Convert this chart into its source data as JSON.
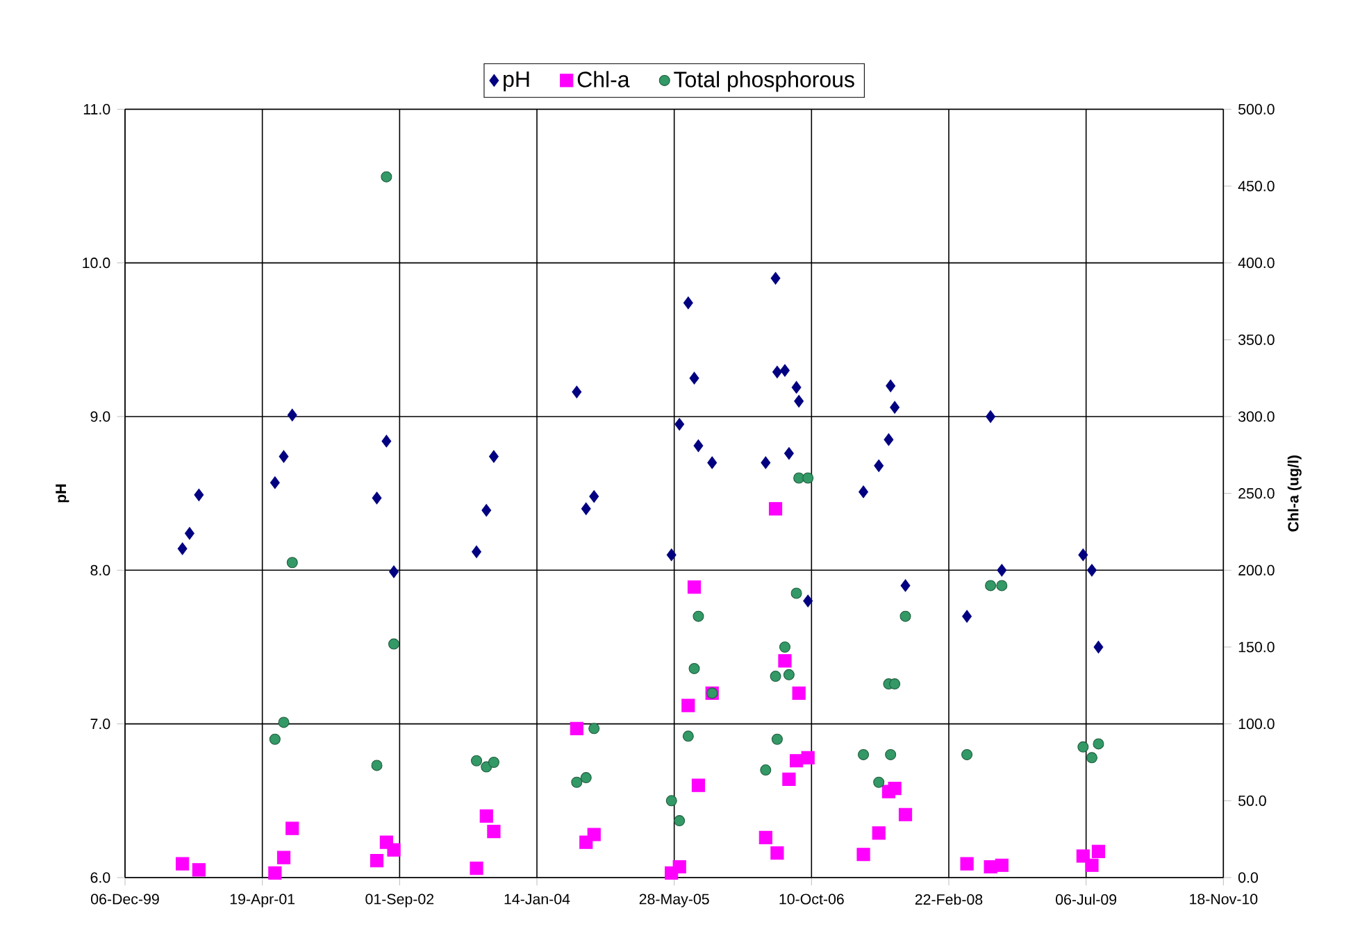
{
  "chart_data": {
    "type": "scatter",
    "ylabel": "pH",
    "y2label": "Chl-a (ug/l)",
    "xlim": [
      "1999-12-06",
      "2010-11-18"
    ],
    "xticks": [
      {
        "value": "1999-12-06",
        "label": "06-Dec-99"
      },
      {
        "value": "2001-04-19",
        "label": "19-Apr-01"
      },
      {
        "value": "2002-09-01",
        "label": "01-Sep-02"
      },
      {
        "value": "2004-01-14",
        "label": "14-Jan-04"
      },
      {
        "value": "2005-05-28",
        "label": "28-May-05"
      },
      {
        "value": "2006-10-10",
        "label": "10-Oct-06"
      },
      {
        "value": "2008-02-22",
        "label": "22-Feb-08"
      },
      {
        "value": "2009-07-06",
        "label": "06-Jul-09"
      },
      {
        "value": "2010-11-18",
        "label": "18-Nov-10"
      }
    ],
    "ylim": [
      6,
      11
    ],
    "yticks": [
      {
        "value": 6,
        "label": "6.0"
      },
      {
        "value": 7,
        "label": "7.0"
      },
      {
        "value": 8,
        "label": "8.0"
      },
      {
        "value": 9,
        "label": "9.0"
      },
      {
        "value": 10,
        "label": "10.0"
      },
      {
        "value": 11,
        "label": "11.0"
      }
    ],
    "y2lim": [
      0,
      500
    ],
    "y2ticks": [
      {
        "value": 0,
        "label": "0.0"
      },
      {
        "value": 50,
        "label": "50.0"
      },
      {
        "value": 100,
        "label": "100.0"
      },
      {
        "value": 150,
        "label": "150.0"
      },
      {
        "value": 200,
        "label": "200.0"
      },
      {
        "value": 250,
        "label": "250.0"
      },
      {
        "value": 300,
        "label": "300.0"
      },
      {
        "value": 350,
        "label": "350.0"
      },
      {
        "value": 400,
        "label": "400.0"
      },
      {
        "value": 450,
        "label": "450.0"
      },
      {
        "value": 500,
        "label": "500.0"
      }
    ],
    "grid": true,
    "legend": "top",
    "series": [
      {
        "name": "pH",
        "color": "#000080",
        "marker": "diamond",
        "x": [
          "2000-07-02",
          "2000-07-28",
          "2000-08-31",
          "2001-06-04",
          "2001-07-06",
          "2001-08-06",
          "2002-06-10",
          "2002-07-15",
          "2002-08-11",
          "2003-06-08",
          "2003-07-14",
          "2003-08-10",
          "2004-06-07",
          "2004-07-11",
          "2004-08-09",
          "2005-05-18",
          "2005-06-16",
          "2005-07-18",
          "2005-08-09",
          "2005-08-24",
          "2005-10-13",
          "2006-04-26",
          "2006-06-01",
          "2006-06-07",
          "2006-07-05",
          "2006-07-20",
          "2006-08-16",
          "2006-08-25",
          "2006-09-27",
          "2007-04-17",
          "2007-06-12",
          "2007-07-18",
          "2007-07-25",
          "2007-08-09",
          "2007-09-17",
          "2008-04-28",
          "2008-07-23",
          "2008-09-02",
          "2009-06-25",
          "2009-07-27",
          "2009-08-20"
        ],
        "values": [
          8.14,
          8.24,
          8.49,
          8.57,
          8.74,
          9.01,
          8.47,
          8.84,
          7.99,
          8.12,
          8.39,
          8.74,
          9.16,
          8.4,
          8.48,
          8.1,
          8.95,
          9.74,
          9.25,
          8.81,
          8.7,
          8.7,
          9.9,
          9.29,
          9.3,
          8.76,
          9.19,
          9.1,
          7.8,
          8.51,
          8.68,
          8.85,
          9.2,
          9.06,
          7.9,
          7.7,
          9.0,
          8.0,
          8.1,
          8.0,
          7.5
        ]
      },
      {
        "name": "Chl-a",
        "color": "#ff00ff",
        "marker": "square",
        "axis": "y2",
        "x": [
          "2000-07-02",
          "2000-08-31",
          "2001-06-04",
          "2001-07-06",
          "2001-08-06",
          "2002-06-10",
          "2002-07-15",
          "2002-08-11",
          "2003-06-08",
          "2003-07-14",
          "2003-08-10",
          "2004-06-07",
          "2004-07-11",
          "2004-08-09",
          "2005-05-18",
          "2005-06-16",
          "2005-07-18",
          "2005-08-09",
          "2005-08-24",
          "2005-10-13",
          "2006-04-26",
          "2006-06-01",
          "2006-06-07",
          "2006-07-05",
          "2006-07-20",
          "2006-08-16",
          "2006-08-25",
          "2006-09-27",
          "2007-04-17",
          "2007-06-12",
          "2007-07-18",
          "2007-08-09",
          "2007-09-17",
          "2008-04-28",
          "2008-07-23",
          "2008-09-02",
          "2009-06-25",
          "2009-07-27",
          "2009-08-20"
        ],
        "values": [
          9,
          5,
          3,
          13,
          32,
          11,
          23,
          18,
          6,
          40,
          30,
          97,
          23,
          28,
          3,
          7,
          112,
          189,
          60,
          120,
          26,
          240,
          16,
          141,
          64,
          76,
          120,
          78,
          15,
          29,
          56,
          58,
          41,
          9,
          7,
          8,
          14,
          8,
          17
        ]
      },
      {
        "name": "Total phosphorous",
        "color": "#339966",
        "marker": "circle",
        "axis": "y2",
        "x": [
          "2001-06-04",
          "2001-07-06",
          "2001-08-06",
          "2002-06-10",
          "2002-07-15",
          "2002-08-11",
          "2003-06-08",
          "2003-07-14",
          "2003-08-10",
          "2004-06-07",
          "2004-07-11",
          "2004-08-09",
          "2005-05-18",
          "2005-06-16",
          "2005-07-18",
          "2005-08-09",
          "2005-08-24",
          "2005-10-13",
          "2006-04-26",
          "2006-06-01",
          "2006-06-07",
          "2006-07-05",
          "2006-07-20",
          "2006-08-16",
          "2006-08-25",
          "2006-09-27",
          "2007-04-17",
          "2007-06-12",
          "2007-07-18",
          "2007-07-25",
          "2007-08-09",
          "2007-09-17",
          "2008-04-28",
          "2008-07-23",
          "2008-09-02",
          "2009-06-25",
          "2009-07-27",
          "2009-08-20"
        ],
        "values": [
          90,
          101,
          205,
          73,
          456,
          152,
          76,
          72,
          75,
          62,
          65,
          97,
          50,
          37,
          92,
          136,
          170,
          120,
          70,
          131,
          90,
          150,
          132,
          185,
          260,
          260,
          80,
          62,
          126,
          80,
          126,
          170,
          80,
          190,
          190,
          85,
          78,
          87
        ]
      }
    ]
  }
}
